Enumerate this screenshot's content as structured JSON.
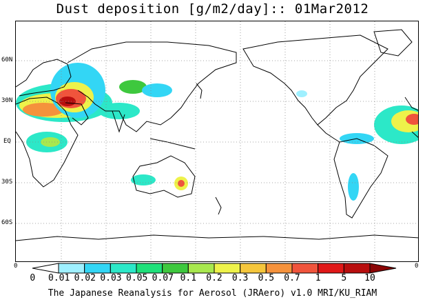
{
  "title": "Dust deposition [g/m2/day]:: 01Mar2012",
  "lat_labels": [
    "60N",
    "30N",
    "EQ",
    "30S",
    "60S"
  ],
  "corner_labels": [
    "0",
    "0"
  ],
  "colorbar": {
    "labels": [
      "0",
      "0.01",
      "0.02",
      "0.03",
      "0.05",
      "0.07",
      "0.1",
      "0.2",
      "0.3",
      "0.5",
      "0.7",
      "1",
      "5",
      "10"
    ],
    "colors": [
      "#ffffff",
      "#9ff0ff",
      "#33d6f5",
      "#2ce8c8",
      "#1fe07a",
      "#3ec83e",
      "#a8e84e",
      "#eef24a",
      "#f5c63c",
      "#f5923c",
      "#f0543c",
      "#e01818",
      "#b80e0e",
      "#8a0404"
    ]
  },
  "credit": "The Japanese Reanalysis for Aerosol (JRAero) v1.0 MRI/KU_RIAM"
}
